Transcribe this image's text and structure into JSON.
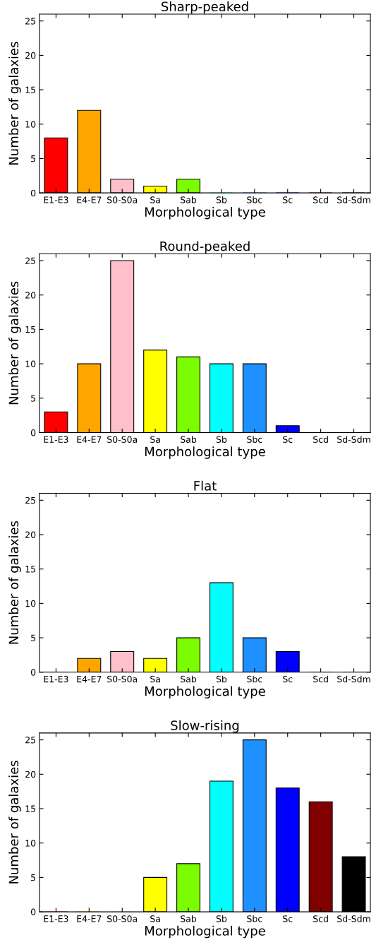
{
  "chart_data": [
    {
      "type": "bar",
      "title": "Sharp-peaked",
      "xlabel": "Morphological type",
      "ylabel": "Number of galaxies",
      "categories": [
        "E1-E3",
        "E4-E7",
        "S0-S0a",
        "Sa",
        "Sab",
        "Sb",
        "Sbc",
        "Sc",
        "Scd",
        "Sd-Sdm"
      ],
      "values": [
        8,
        12,
        2,
        1,
        2,
        0,
        0,
        0,
        0,
        0
      ],
      "colors": [
        "#ff0000",
        "#ffa500",
        "#ffc0cb",
        "#ffff00",
        "#7cfc00",
        "#00ffff",
        "#1e90ff",
        "#0000ff",
        "#800000",
        "#000000"
      ],
      "ylim": [
        0,
        26
      ],
      "yticks": [
        0,
        5,
        10,
        15,
        20,
        25
      ],
      "grid": false,
      "legend": false
    },
    {
      "type": "bar",
      "title": "Round-peaked",
      "xlabel": "Morphological type",
      "ylabel": "Number of galaxies",
      "categories": [
        "E1-E3",
        "E4-E7",
        "S0-S0a",
        "Sa",
        "Sab",
        "Sb",
        "Sbc",
        "Sc",
        "Scd",
        "Sd-Sdm"
      ],
      "values": [
        3,
        10,
        25,
        12,
        11,
        10,
        10,
        1,
        0,
        0
      ],
      "colors": [
        "#ff0000",
        "#ffa500",
        "#ffc0cb",
        "#ffff00",
        "#7cfc00",
        "#00ffff",
        "#1e90ff",
        "#0000ff",
        "#800000",
        "#000000"
      ],
      "ylim": [
        0,
        26
      ],
      "yticks": [
        0,
        5,
        10,
        15,
        20,
        25
      ],
      "grid": false,
      "legend": false
    },
    {
      "type": "bar",
      "title": "Flat",
      "xlabel": "Morphological type",
      "ylabel": "Number of galaxies",
      "categories": [
        "E1-E3",
        "E4-E7",
        "S0-S0a",
        "Sa",
        "Sab",
        "Sb",
        "Sbc",
        "Sc",
        "Scd",
        "Sd-Sdm"
      ],
      "values": [
        0,
        2,
        3,
        2,
        5,
        13,
        5,
        3,
        0,
        0
      ],
      "colors": [
        "#ff0000",
        "#ffa500",
        "#ffc0cb",
        "#ffff00",
        "#7cfc00",
        "#00ffff",
        "#1e90ff",
        "#0000ff",
        "#800000",
        "#000000"
      ],
      "ylim": [
        0,
        26
      ],
      "yticks": [
        0,
        5,
        10,
        15,
        20,
        25
      ],
      "grid": false,
      "legend": false
    },
    {
      "type": "bar",
      "title": "Slow-rising",
      "xlabel": "Morphological type",
      "ylabel": "Number of galaxies",
      "categories": [
        "E1-E3",
        "E4-E7",
        "S0-S0a",
        "Sa",
        "Sab",
        "Sb",
        "Sbc",
        "Sc",
        "Scd",
        "Sd-Sdm"
      ],
      "values": [
        0,
        0,
        0,
        5,
        7,
        19,
        25,
        18,
        16,
        8
      ],
      "colors": [
        "#ff0000",
        "#ffa500",
        "#ffc0cb",
        "#ffff00",
        "#7cfc00",
        "#00ffff",
        "#1e90ff",
        "#0000ff",
        "#800000",
        "#000000"
      ],
      "ylim": [
        0,
        26
      ],
      "yticks": [
        0,
        5,
        10,
        15,
        20,
        25
      ],
      "grid": false,
      "legend": false
    }
  ]
}
